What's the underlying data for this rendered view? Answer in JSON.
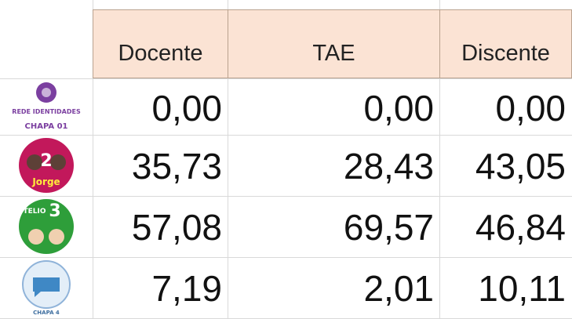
{
  "table": {
    "columns": [
      "Docente",
      "TAE",
      "Discente"
    ],
    "rows": [
      {
        "logo": {
          "org": "REDE IDENTIDADES",
          "label": "CHAPA 01"
        },
        "values": [
          "0,00",
          "0,00",
          "0,00"
        ]
      },
      {
        "logo": {
          "number": "2",
          "name": "Jorge"
        },
        "values": [
          "35,73",
          "28,43",
          "43,05"
        ]
      },
      {
        "logo": {
          "name": "TELIO",
          "number": "3"
        },
        "values": [
          "57,08",
          "69,57",
          "46,84"
        ]
      },
      {
        "logo": {
          "label": "CHAPA 4"
        },
        "values": [
          "7,19",
          "2,01",
          "10,11"
        ]
      }
    ]
  }
}
